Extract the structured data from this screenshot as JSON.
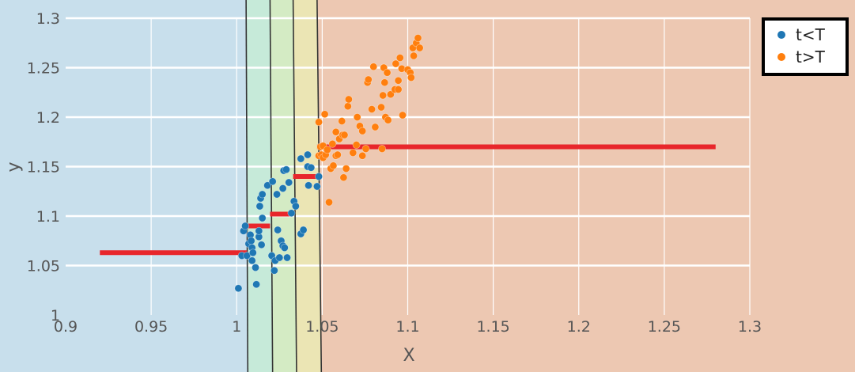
{
  "chart_data": {
    "type": "scatter",
    "xlabel": "X",
    "ylabel": "y",
    "xlim": [
      0.9,
      1.3
    ],
    "ylim": [
      1.0,
      1.3
    ],
    "x_ticks": [
      0.9,
      0.95,
      1.0,
      1.05,
      1.1,
      1.15,
      1.2,
      1.25,
      1.3
    ],
    "y_ticks": [
      1.0,
      1.05,
      1.1,
      1.15,
      1.2,
      1.25,
      1.3
    ],
    "x_tick_labels": [
      "0.9",
      "0.95",
      "1",
      "1.05",
      "1.1",
      "1.15",
      "1.2",
      "1.25",
      "1.3"
    ],
    "y_tick_labels": [
      "1",
      "1.05",
      "1.1",
      "1.15",
      "1.2",
      "1.25",
      "1.3"
    ],
    "grid": true,
    "legend_position": "top-right",
    "colors": {
      "t_lt_T": "#1f77b4",
      "t_gt_T": "#ff7f0e",
      "step_line": "#e8262b",
      "region_1": "#c8dfec",
      "region_2": "#c6ead9",
      "region_3": "#d4ebc4",
      "region_4": "#ebe5b4",
      "region_5": "#edc8b2",
      "boundary": "#333333"
    },
    "region_boundaries": [
      {
        "top_x": 1.0055,
        "bottom_x": 1.0065
      },
      {
        "top_x": 1.0195,
        "bottom_x": 1.021
      },
      {
        "top_x": 1.033,
        "bottom_x": 1.035
      },
      {
        "top_x": 1.047,
        "bottom_x": 1.0495
      }
    ],
    "steps": [
      {
        "x0": 0.92,
        "x1": 1.006,
        "y": 1.063
      },
      {
        "x0": 1.006,
        "x1": 1.0195,
        "y": 1.09
      },
      {
        "x0": 1.0195,
        "x1": 1.033,
        "y": 1.102
      },
      {
        "x0": 1.033,
        "x1": 1.047,
        "y": 1.14
      },
      {
        "x0": 1.047,
        "x1": 1.28,
        "y": 1.17
      }
    ],
    "series": [
      {
        "name": "t<T",
        "points": [
          [
            1.001,
            1.027
          ],
          [
            1.003,
            1.06
          ],
          [
            1.004,
            1.085
          ],
          [
            1.005,
            1.09
          ],
          [
            1.006,
            1.06
          ],
          [
            1.007,
            1.072
          ],
          [
            1.008,
            1.081
          ],
          [
            1.0085,
            1.075
          ],
          [
            1.009,
            1.068
          ],
          [
            1.009,
            1.055
          ],
          [
            1.0095,
            1.063
          ],
          [
            1.011,
            1.048
          ],
          [
            1.0115,
            1.031
          ],
          [
            1.013,
            1.079
          ],
          [
            1.013,
            1.085
          ],
          [
            1.0135,
            1.11
          ],
          [
            1.014,
            1.118
          ],
          [
            1.0145,
            1.071
          ],
          [
            1.015,
            1.122
          ],
          [
            1.015,
            1.098
          ],
          [
            1.018,
            1.131
          ],
          [
            1.0205,
            1.06
          ],
          [
            1.021,
            1.135
          ],
          [
            1.022,
            1.045
          ],
          [
            1.0225,
            1.055
          ],
          [
            1.0235,
            1.122
          ],
          [
            1.024,
            1.086
          ],
          [
            1.025,
            1.058
          ],
          [
            1.026,
            1.075
          ],
          [
            1.027,
            1.07
          ],
          [
            1.027,
            1.128
          ],
          [
            1.0275,
            1.146
          ],
          [
            1.028,
            1.068
          ],
          [
            1.029,
            1.147
          ],
          [
            1.0295,
            1.058
          ],
          [
            1.0305,
            1.134
          ],
          [
            1.032,
            1.103
          ],
          [
            1.0335,
            1.115
          ],
          [
            1.0345,
            1.11
          ],
          [
            1.0375,
            1.158
          ],
          [
            1.0375,
            1.082
          ],
          [
            1.039,
            1.086
          ],
          [
            1.0415,
            1.15
          ],
          [
            1.0415,
            1.162
          ],
          [
            1.042,
            1.131
          ],
          [
            1.0435,
            1.149
          ],
          [
            1.047,
            1.13
          ],
          [
            1.048,
            1.14
          ]
        ]
      },
      {
        "name": "t>T",
        "points": [
          [
            1.048,
            1.195
          ],
          [
            1.048,
            1.161
          ],
          [
            1.049,
            1.17
          ],
          [
            1.0495,
            1.162
          ],
          [
            1.0505,
            1.171
          ],
          [
            1.0505,
            1.159
          ],
          [
            1.0515,
            1.203
          ],
          [
            1.052,
            1.162
          ],
          [
            1.053,
            1.167
          ],
          [
            1.054,
            1.114
          ],
          [
            1.055,
            1.148
          ],
          [
            1.056,
            1.173
          ],
          [
            1.0565,
            1.151
          ],
          [
            1.058,
            1.185
          ],
          [
            1.058,
            1.161
          ],
          [
            1.059,
            1.162
          ],
          [
            1.06,
            1.178
          ],
          [
            1.0615,
            1.196
          ],
          [
            1.062,
            1.182
          ],
          [
            1.0625,
            1.139
          ],
          [
            1.063,
            1.182
          ],
          [
            1.064,
            1.148
          ],
          [
            1.065,
            1.211
          ],
          [
            1.0655,
            1.218
          ],
          [
            1.068,
            1.164
          ],
          [
            1.07,
            1.172
          ],
          [
            1.0705,
            1.2
          ],
          [
            1.072,
            1.191
          ],
          [
            1.0735,
            1.186
          ],
          [
            1.0735,
            1.161
          ],
          [
            1.0755,
            1.168
          ],
          [
            1.0765,
            1.235
          ],
          [
            1.077,
            1.238
          ],
          [
            1.079,
            1.208
          ],
          [
            1.08,
            1.251
          ],
          [
            1.081,
            1.19
          ],
          [
            1.0845,
            1.21
          ],
          [
            1.085,
            1.168
          ],
          [
            1.0855,
            1.222
          ],
          [
            1.086,
            1.25
          ],
          [
            1.0865,
            1.235
          ],
          [
            1.087,
            1.2
          ],
          [
            1.088,
            1.245
          ],
          [
            1.0885,
            1.197
          ],
          [
            1.09,
            1.223
          ],
          [
            1.0925,
            1.228
          ],
          [
            1.093,
            1.254
          ],
          [
            1.0945,
            1.237
          ],
          [
            1.0945,
            1.228
          ],
          [
            1.0955,
            1.26
          ],
          [
            1.0965,
            1.249
          ],
          [
            1.097,
            1.202
          ],
          [
            1.1,
            1.248
          ],
          [
            1.1015,
            1.245
          ],
          [
            1.102,
            1.24
          ],
          [
            1.103,
            1.27
          ],
          [
            1.1035,
            1.262
          ],
          [
            1.105,
            1.275
          ],
          [
            1.106,
            1.28
          ],
          [
            1.107,
            1.27
          ]
        ]
      }
    ]
  }
}
